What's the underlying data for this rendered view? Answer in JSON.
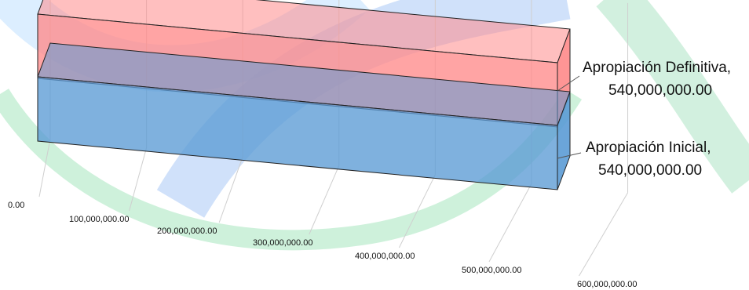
{
  "chart_data": {
    "type": "bar",
    "orientation": "horizontal",
    "three_d": true,
    "categories": [
      "Apropiación Inicial",
      "Apropiación Definitiva"
    ],
    "values": [
      540000000,
      540000000
    ],
    "data_labels": [
      {
        "name": "Apropiación Inicial,",
        "value": "540,000,000.00"
      },
      {
        "name": "Apropiación Definitiva,",
        "value": "540,000,000.00"
      }
    ],
    "x_ticks": [
      "0.00",
      "100,000,000.00",
      "200,000,000.00",
      "300,000,000.00",
      "400,000,000.00",
      "500,000,000.00",
      "600,000,000.00"
    ],
    "xlim": [
      0,
      600000000
    ],
    "grid": true,
    "title": "",
    "xlabel": "",
    "ylabel": "",
    "colors": {
      "inicial": "#5b9bd5",
      "definitiva": "#ff8a8a",
      "background_arc_blue": "#cfe3fb",
      "background_arc_green": "#d5f3e1"
    }
  }
}
